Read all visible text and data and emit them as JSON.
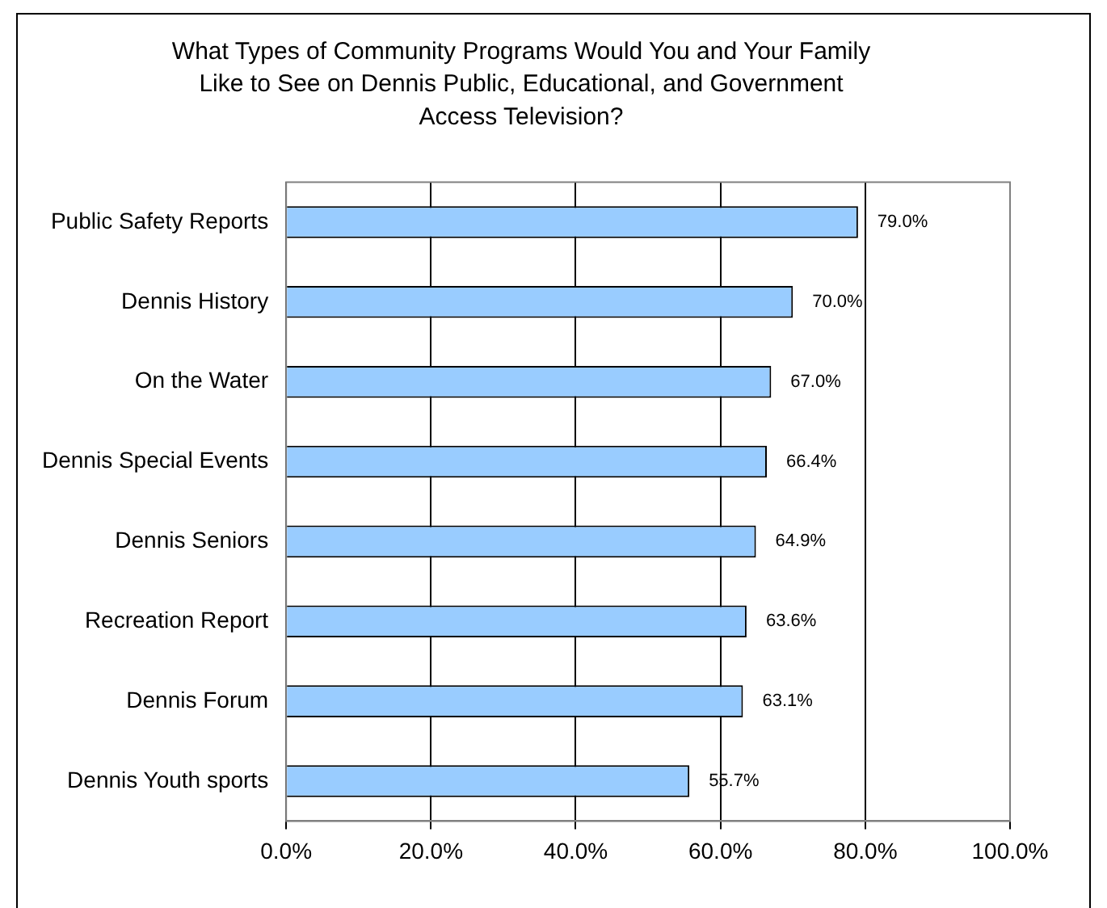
{
  "chart_data": {
    "type": "bar",
    "orientation": "horizontal",
    "title": "What Types of Community Programs Would You and Your Family Like to See on Dennis Public, Educational, and Government Access Television?",
    "categories": [
      "Public Safety Reports",
      "Dennis History",
      "On the Water",
      "Dennis Special Events",
      "Dennis Seniors",
      "Recreation Report",
      "Dennis Forum",
      "Dennis Youth sports"
    ],
    "values": [
      79.0,
      70.0,
      67.0,
      66.4,
      64.9,
      63.6,
      63.1,
      55.7
    ],
    "value_labels": [
      "79.0%",
      "70.0%",
      "67.0%",
      "66.4%",
      "64.9%",
      "63.6%",
      "63.1%",
      "55.7%"
    ],
    "color": "#99ccff",
    "xlim": [
      0,
      100
    ],
    "xticks": [
      {
        "value": 0,
        "label": "0.0%"
      },
      {
        "value": 20,
        "label": "20.0%"
      },
      {
        "value": 40,
        "label": "40.0%"
      },
      {
        "value": 60,
        "label": "60.0%"
      },
      {
        "value": 80,
        "label": "80.0%"
      },
      {
        "value": 100,
        "label": "100.0%"
      }
    ],
    "grid": "x"
  }
}
